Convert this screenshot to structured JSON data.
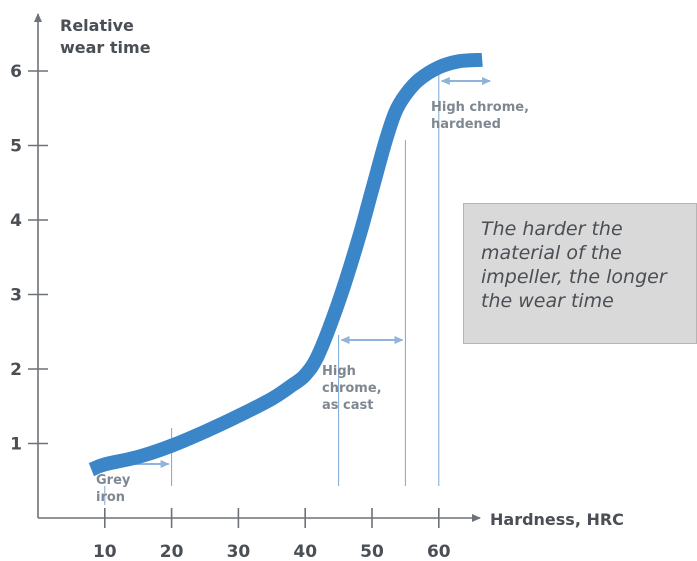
{
  "chart_data": {
    "type": "line",
    "y_axis_title": [
      "Relative",
      "wear time"
    ],
    "x_axis_title": "Hardness, HRC",
    "x_ticks": [
      10,
      20,
      30,
      40,
      50,
      60
    ],
    "y_ticks": [
      1,
      2,
      3,
      4,
      5,
      6
    ],
    "series": [
      {
        "color": "#3b85c9",
        "x": [
          8,
          10,
          15,
          20,
          25,
          30,
          35,
          38,
          40,
          42,
          45,
          48,
          50,
          52,
          53.5,
          55,
          57,
          60,
          63,
          66.5
        ],
        "y": [
          0.65,
          0.72,
          0.82,
          0.97,
          1.16,
          1.37,
          1.6,
          1.78,
          1.92,
          2.2,
          2.9,
          3.75,
          4.4,
          5.05,
          5.45,
          5.68,
          5.88,
          6.05,
          6.13,
          6.15
        ]
      }
    ],
    "regions": [
      {
        "label": [
          "Grey",
          "iron"
        ],
        "x_range": [
          10,
          20
        ]
      },
      {
        "label": [
          "High",
          "chrome,",
          "as cast"
        ],
        "x_range": [
          45,
          55
        ]
      },
      {
        "label": [
          "High chrome,",
          "hardened"
        ],
        "x_range": [
          60,
          70
        ]
      }
    ],
    "annotation": "The harder the\nmaterial of the\nimpeller, the longer\nthe wear time",
    "colors": {
      "axis": "#6d7278",
      "curve": "#3b85c9",
      "arrows": "#8fb3d9",
      "guides": "#7aa8d6",
      "callout_bg": "#d9d9d9"
    }
  }
}
